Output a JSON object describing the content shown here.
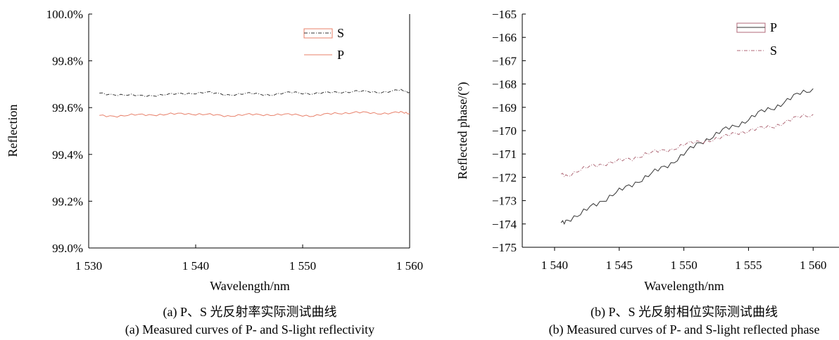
{
  "chart_data": [
    {
      "type": "line",
      "xlabel": "Wavelength/nm",
      "ylabel": "Reflection",
      "xlim": [
        1530,
        1560
      ],
      "ylim": [
        99.0,
        100.0
      ],
      "x_ticks": [
        "1 530",
        "1 540",
        "1 550",
        "1 560"
      ],
      "y_ticks": [
        "99.0%",
        "99.2%",
        "99.4%",
        "99.6%",
        "99.8%",
        "100.0%"
      ],
      "legend_position": "top-right",
      "caption_zh": "(a) P、S 光反射率实际测试曲线",
      "caption_en": "(a) Measured curves of P- and S-light reflectivity",
      "series": [
        {
          "name": "S",
          "color": "#333333",
          "style": "dash-dot",
          "x": [
            1531,
            1533,
            1535,
            1537,
            1539,
            1541,
            1543,
            1545,
            1547,
            1549,
            1551,
            1553,
            1555,
            1557,
            1559,
            1560
          ],
          "values": [
            99.66,
            99.655,
            99.65,
            99.655,
            99.66,
            99.665,
            99.655,
            99.66,
            99.655,
            99.665,
            99.66,
            99.665,
            99.67,
            99.665,
            99.675,
            99.665
          ]
        },
        {
          "name": "P",
          "color": "#e8806a",
          "style": "solid",
          "x": [
            1531,
            1533,
            1535,
            1537,
            1539,
            1541,
            1543,
            1545,
            1547,
            1549,
            1551,
            1553,
            1555,
            1557,
            1559,
            1560
          ],
          "values": [
            99.565,
            99.565,
            99.57,
            99.57,
            99.575,
            99.57,
            99.565,
            99.57,
            99.57,
            99.57,
            99.565,
            99.575,
            99.58,
            99.575,
            99.58,
            99.575
          ]
        }
      ]
    },
    {
      "type": "line",
      "xlabel": "Wavelength/nm",
      "ylabel": "Reflected phase/(°)",
      "xlim": [
        1537.5,
        1562
      ],
      "ylim": [
        -175,
        -165
      ],
      "x_ticks": [
        "1 540",
        "1 545",
        "1 550",
        "1 555",
        "1 560"
      ],
      "x_tick_values": [
        1540,
        1545,
        1550,
        1555,
        1560
      ],
      "y_ticks": [
        "−175",
        "−174",
        "−173",
        "−172",
        "−171",
        "−170",
        "−169",
        "−168",
        "−167",
        "−166",
        "−165"
      ],
      "legend_position": "top-right",
      "caption_zh": "(b) P、S 光反射相位实际测试曲线",
      "caption_en": "(b) Measured curves of P- and S-light reflected phase",
      "series": [
        {
          "name": "P",
          "color": "#333333",
          "style": "solid",
          "x": [
            1540.5,
            1541,
            1542,
            1543,
            1544,
            1545,
            1546,
            1547,
            1548,
            1549,
            1550,
            1551,
            1552,
            1553,
            1554,
            1555,
            1556,
            1557,
            1558,
            1559,
            1560
          ],
          "values": [
            -174.0,
            -173.8,
            -173.6,
            -173.2,
            -172.9,
            -172.6,
            -172.3,
            -172.0,
            -171.7,
            -171.4,
            -171.0,
            -170.6,
            -170.3,
            -170.0,
            -169.8,
            -169.5,
            -169.2,
            -169.0,
            -168.7,
            -168.4,
            -168.2
          ]
        },
        {
          "name": "S",
          "color": "#b06a78",
          "style": "dash-dot",
          "x": [
            1540.5,
            1541,
            1542,
            1543,
            1544,
            1545,
            1546,
            1547,
            1548,
            1549,
            1550,
            1551,
            1552,
            1553,
            1554,
            1555,
            1556,
            1557,
            1558,
            1559,
            1560
          ],
          "values": [
            -171.9,
            -171.9,
            -171.7,
            -171.5,
            -171.4,
            -171.3,
            -171.2,
            -171.0,
            -170.9,
            -170.8,
            -170.6,
            -170.5,
            -170.4,
            -170.3,
            -170.1,
            -170.0,
            -169.9,
            -169.8,
            -169.6,
            -169.4,
            -169.3
          ]
        }
      ]
    }
  ]
}
